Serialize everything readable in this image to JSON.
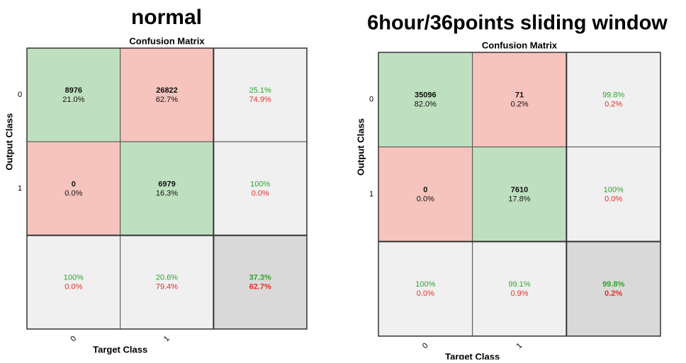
{
  "panels": [
    {
      "heading": "normal",
      "title": "Confusion Matrix",
      "xlabel": "Target Class",
      "ylabel": "Output Class",
      "xticks": [
        "0",
        "1"
      ],
      "yticks": [
        "0",
        "1"
      ],
      "cells": [
        [
          {
            "top": "8976",
            "bottom": "21.0%"
          },
          {
            "top": "26822",
            "bottom": "62.7%"
          },
          {
            "top": "25.1%",
            "bottom": "74.9%"
          }
        ],
        [
          {
            "top": "0",
            "bottom": "0.0%"
          },
          {
            "top": "6979",
            "bottom": "16.3%"
          },
          {
            "top": "100%",
            "bottom": "0.0%"
          }
        ],
        [
          {
            "top": "100%",
            "bottom": "0.0%"
          },
          {
            "top": "20.6%",
            "bottom": "79.4%"
          },
          {
            "top": "37.3%",
            "bottom": "62.7%"
          }
        ]
      ]
    },
    {
      "heading": "6hour/36points sliding window",
      "title": "Confusion Matrix",
      "xlabel": "Target Class",
      "ylabel": "Output Class",
      "xticks": [
        "0",
        "1"
      ],
      "yticks": [
        "0",
        "1"
      ],
      "cells": [
        [
          {
            "top": "35096",
            "bottom": "82.0%"
          },
          {
            "top": "71",
            "bottom": "0.2%"
          },
          {
            "top": "99.8%",
            "bottom": "0.2%"
          }
        ],
        [
          {
            "top": "0",
            "bottom": "0.0%"
          },
          {
            "top": "7610",
            "bottom": "17.8%"
          },
          {
            "top": "100%",
            "bottom": "0.0%"
          }
        ],
        [
          {
            "top": "100%",
            "bottom": "0.0%"
          },
          {
            "top": "99.1%",
            "bottom": "0.9%"
          },
          {
            "top": "99.8%",
            "bottom": "0.2%"
          }
        ]
      ]
    }
  ]
}
